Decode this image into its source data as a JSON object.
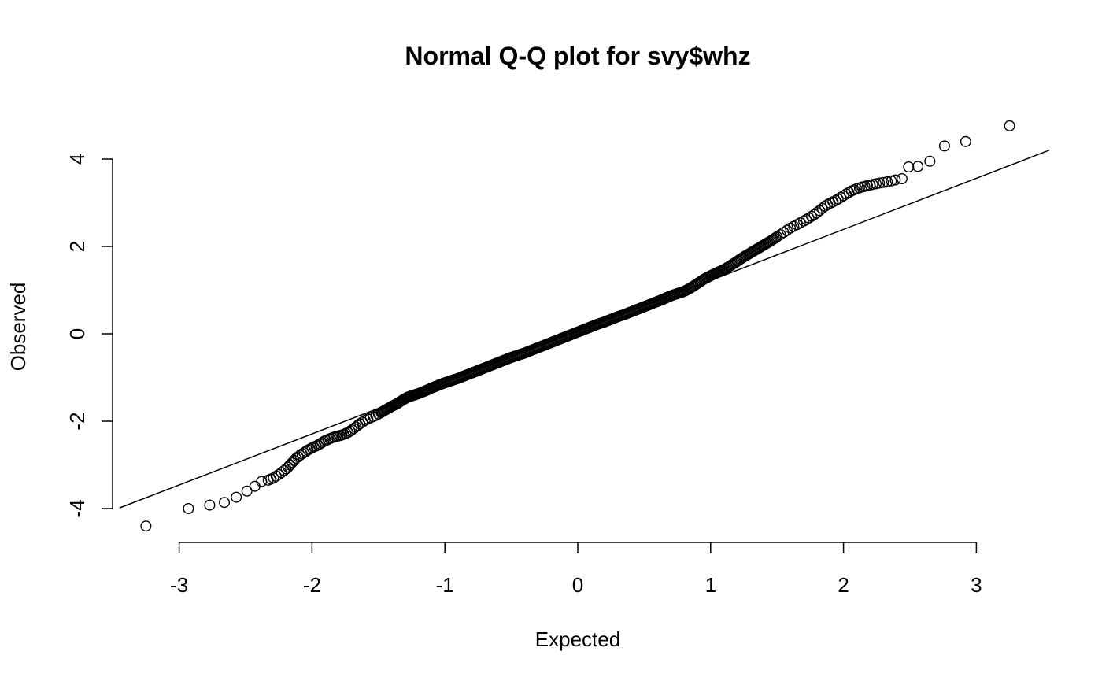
{
  "chart_data": {
    "type": "scatter",
    "title": "Normal Q-Q plot for svy$whz",
    "xlabel": "Expected",
    "ylabel": "Observed",
    "xlim": [
      -3.45,
      3.55
    ],
    "ylim": [
      -4.4,
      4.8
    ],
    "x_ticks": [
      -3,
      -2,
      -1,
      0,
      1,
      2,
      3
    ],
    "y_ticks": [
      -4,
      -2,
      0,
      2,
      4
    ],
    "grid": false,
    "legend": "none",
    "reference_line": {
      "intercept": 0.05,
      "slope": 1.17
    },
    "point_marker": "open-circle",
    "series": [
      {
        "values_xy": [
          [
            -3.25,
            -4.4
          ],
          [
            -2.93,
            -4.0
          ],
          [
            -2.77,
            -3.92
          ],
          [
            -2.66,
            -3.86
          ],
          [
            -2.57,
            -3.74
          ],
          [
            -2.49,
            -3.6
          ],
          [
            -2.43,
            -3.49
          ],
          [
            -2.38,
            -3.38
          ],
          [
            -2.33,
            -3.35
          ],
          [
            -2.29,
            -3.3
          ],
          [
            -2.25,
            -3.22
          ],
          [
            -2.21,
            -3.13
          ],
          [
            -2.18,
            -3.05
          ],
          [
            -2.15,
            -2.95
          ],
          [
            -2.12,
            -2.85
          ],
          [
            -2.09,
            -2.78
          ],
          [
            -2.06,
            -2.72
          ],
          [
            -2.03,
            -2.66
          ],
          [
            -2.0,
            -2.61
          ],
          [
            -1.97,
            -2.57
          ],
          [
            -1.94,
            -2.52
          ],
          [
            -1.91,
            -2.46
          ],
          [
            -1.88,
            -2.42
          ],
          [
            -1.85,
            -2.38
          ],
          [
            -1.82,
            -2.35
          ],
          [
            -1.79,
            -2.33
          ],
          [
            -1.76,
            -2.3
          ],
          [
            -1.73,
            -2.26
          ],
          [
            -1.7,
            -2.2
          ],
          [
            -1.67,
            -2.13
          ],
          [
            -1.64,
            -2.06
          ],
          [
            -1.6,
            -1.98
          ],
          [
            -1.56,
            -1.92
          ],
          [
            -1.52,
            -1.87
          ],
          [
            -1.48,
            -1.8
          ],
          [
            -1.44,
            -1.73
          ],
          [
            -1.4,
            -1.66
          ],
          [
            -1.36,
            -1.6
          ],
          [
            -1.32,
            -1.52
          ],
          [
            -1.28,
            -1.45
          ],
          [
            -1.24,
            -1.41
          ],
          [
            -1.2,
            -1.37
          ],
          [
            -1.15,
            -1.31
          ],
          [
            -1.1,
            -1.24
          ],
          [
            -1.05,
            -1.18
          ],
          [
            -1.0,
            -1.12
          ],
          [
            -0.95,
            -1.07
          ],
          [
            -0.9,
            -1.02
          ],
          [
            -0.85,
            -0.96
          ],
          [
            -0.8,
            -0.9
          ],
          [
            -0.75,
            -0.84
          ],
          [
            -0.7,
            -0.78
          ],
          [
            -0.65,
            -0.72
          ],
          [
            -0.6,
            -0.66
          ],
          [
            -0.55,
            -0.6
          ],
          [
            -0.5,
            -0.54
          ],
          [
            -0.45,
            -0.49
          ],
          [
            -0.4,
            -0.44
          ],
          [
            -0.35,
            -0.38
          ],
          [
            -0.3,
            -0.32
          ],
          [
            -0.25,
            -0.26
          ],
          [
            -0.2,
            -0.2
          ],
          [
            -0.15,
            -0.14
          ],
          [
            -0.1,
            -0.08
          ],
          [
            -0.05,
            -0.02
          ],
          [
            0.0,
            0.04
          ],
          [
            0.05,
            0.1
          ],
          [
            0.1,
            0.16
          ],
          [
            0.15,
            0.22
          ],
          [
            0.2,
            0.27
          ],
          [
            0.25,
            0.33
          ],
          [
            0.3,
            0.39
          ],
          [
            0.35,
            0.44
          ],
          [
            0.4,
            0.5
          ],
          [
            0.45,
            0.56
          ],
          [
            0.5,
            0.62
          ],
          [
            0.55,
            0.68
          ],
          [
            0.6,
            0.74
          ],
          [
            0.65,
            0.8
          ],
          [
            0.7,
            0.87
          ],
          [
            0.75,
            0.92
          ],
          [
            0.8,
            0.97
          ],
          [
            0.85,
            1.05
          ],
          [
            0.9,
            1.15
          ],
          [
            0.95,
            1.25
          ],
          [
            1.0,
            1.33
          ],
          [
            1.05,
            1.4
          ],
          [
            1.1,
            1.47
          ],
          [
            1.15,
            1.56
          ],
          [
            1.2,
            1.66
          ],
          [
            1.25,
            1.76
          ],
          [
            1.3,
            1.85
          ],
          [
            1.35,
            1.94
          ],
          [
            1.4,
            2.03
          ],
          [
            1.45,
            2.12
          ],
          [
            1.5,
            2.22
          ],
          [
            1.55,
            2.32
          ],
          [
            1.6,
            2.42
          ],
          [
            1.65,
            2.5
          ],
          [
            1.7,
            2.58
          ],
          [
            1.74,
            2.65
          ],
          [
            1.78,
            2.73
          ],
          [
            1.82,
            2.82
          ],
          [
            1.86,
            2.92
          ],
          [
            1.9,
            2.99
          ],
          [
            1.94,
            3.05
          ],
          [
            1.98,
            3.12
          ],
          [
            2.02,
            3.2
          ],
          [
            2.06,
            3.27
          ],
          [
            2.1,
            3.32
          ],
          [
            2.14,
            3.36
          ],
          [
            2.18,
            3.39
          ],
          [
            2.22,
            3.42
          ],
          [
            2.27,
            3.45
          ],
          [
            2.33,
            3.48
          ],
          [
            2.39,
            3.52
          ],
          [
            2.44,
            3.55
          ],
          [
            2.49,
            3.82
          ],
          [
            2.56,
            3.83
          ],
          [
            2.65,
            3.95
          ],
          [
            2.76,
            4.3
          ],
          [
            2.92,
            4.4
          ],
          [
            3.25,
            4.76
          ]
        ]
      }
    ]
  }
}
